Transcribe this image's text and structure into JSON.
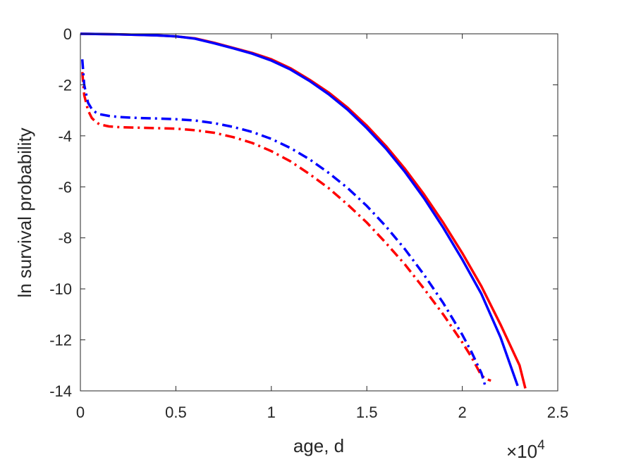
{
  "chart_data": {
    "type": "line",
    "title": "",
    "xlabel": "age, d",
    "ylabel": "ln survival probability",
    "x_exponent_label": {
      "base": "×10",
      "exp": "4"
    },
    "xlim": [
      0,
      2.5
    ],
    "ylim": [
      -14,
      0
    ],
    "x_ticks": [
      0,
      0.5,
      1,
      1.5,
      2,
      2.5
    ],
    "x_tick_labels": [
      "0",
      "0.5",
      "1",
      "1.5",
      "2",
      "2.5"
    ],
    "y_ticks": [
      0,
      -2,
      -4,
      -6,
      -8,
      -10,
      -12,
      -14
    ],
    "y_tick_labels": [
      "0",
      "-2",
      "-4",
      "-6",
      "-8",
      "-10",
      "-12",
      "-14"
    ],
    "grid": false,
    "series": [
      {
        "color": "#ff0000",
        "style": "solid",
        "x": [
          0,
          0.2,
          0.4,
          0.5,
          0.6,
          0.7,
          0.8,
          0.9,
          1.0,
          1.1,
          1.2,
          1.3,
          1.4,
          1.5,
          1.6,
          1.7,
          1.8,
          1.9,
          2.0,
          2.1,
          2.2,
          2.3,
          2.33
        ],
        "y": [
          0,
          -0.02,
          -0.06,
          -0.1,
          -0.18,
          -0.35,
          -0.55,
          -0.75,
          -1.0,
          -1.35,
          -1.8,
          -2.3,
          -2.9,
          -3.6,
          -4.4,
          -5.3,
          -6.3,
          -7.4,
          -8.6,
          -9.9,
          -11.4,
          -13.0,
          -13.9
        ]
      },
      {
        "color": "#0000ff",
        "style": "solid",
        "x": [
          0,
          0.2,
          0.4,
          0.5,
          0.6,
          0.7,
          0.8,
          0.9,
          1.0,
          1.1,
          1.2,
          1.3,
          1.4,
          1.5,
          1.6,
          1.7,
          1.8,
          1.9,
          2.0,
          2.1,
          2.2,
          2.29
        ],
        "y": [
          0,
          -0.02,
          -0.06,
          -0.1,
          -0.19,
          -0.37,
          -0.57,
          -0.78,
          -1.05,
          -1.4,
          -1.85,
          -2.37,
          -2.98,
          -3.7,
          -4.5,
          -5.42,
          -6.45,
          -7.6,
          -8.85,
          -10.2,
          -11.9,
          -13.8
        ]
      },
      {
        "color": "#ff0000",
        "style": "dashdot",
        "x": [
          0.01,
          0.02,
          0.04,
          0.06,
          0.08,
          0.1,
          0.15,
          0.2,
          0.3,
          0.4,
          0.5,
          0.6,
          0.7,
          0.8,
          0.9,
          1.0,
          1.1,
          1.2,
          1.3,
          1.4,
          1.5,
          1.6,
          1.7,
          1.8,
          1.9,
          2.0,
          2.05,
          2.1,
          2.13,
          2.15
        ],
        "y": [
          -1.5,
          -2.4,
          -3.0,
          -3.3,
          -3.45,
          -3.55,
          -3.63,
          -3.66,
          -3.68,
          -3.7,
          -3.72,
          -3.78,
          -3.88,
          -4.05,
          -4.28,
          -4.6,
          -5.0,
          -5.5,
          -6.05,
          -6.7,
          -7.4,
          -8.2,
          -9.05,
          -10.0,
          -11.0,
          -12.1,
          -12.7,
          -13.4,
          -13.55,
          -13.6
        ]
      },
      {
        "color": "#0000ff",
        "style": "dashdot",
        "x": [
          0.01,
          0.02,
          0.04,
          0.06,
          0.08,
          0.1,
          0.15,
          0.2,
          0.3,
          0.4,
          0.5,
          0.6,
          0.7,
          0.8,
          0.9,
          1.0,
          1.1,
          1.2,
          1.3,
          1.4,
          1.5,
          1.6,
          1.7,
          1.8,
          1.9,
          2.0,
          2.05,
          2.1,
          2.12
        ],
        "y": [
          -1.0,
          -2.0,
          -2.7,
          -2.95,
          -3.08,
          -3.15,
          -3.22,
          -3.26,
          -3.3,
          -3.32,
          -3.35,
          -3.4,
          -3.5,
          -3.65,
          -3.85,
          -4.12,
          -4.48,
          -4.92,
          -5.45,
          -6.05,
          -6.75,
          -7.55,
          -8.45,
          -9.45,
          -10.55,
          -11.8,
          -12.5,
          -13.3,
          -13.8
        ]
      }
    ]
  }
}
